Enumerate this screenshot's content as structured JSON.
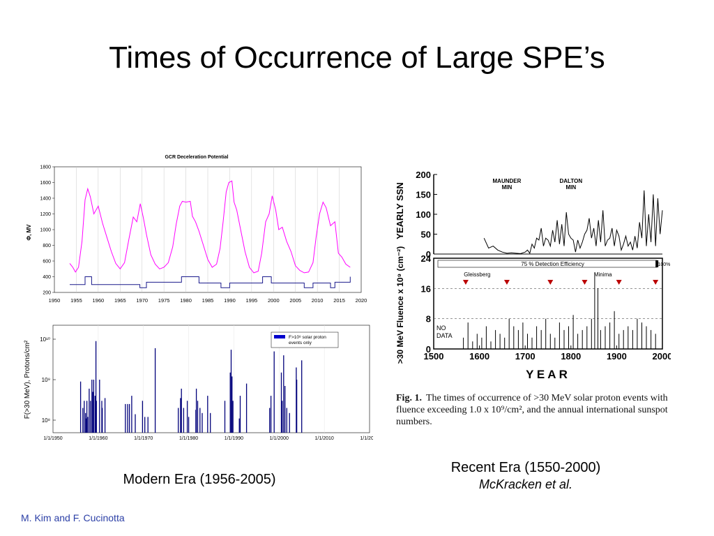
{
  "slide": {
    "title": "Times of Occurrence of Large SPE’s",
    "footer": "M. Kim and F. Cucinotta",
    "caption_modern": "Modern Era (1956-2005)",
    "caption_recent": "Recent Era (1550-2000)",
    "caption_recent_author": "McKracken et al."
  },
  "figure_caption": {
    "label": "Fig. 1.",
    "text": "The times of occurrence of  >30 MeV solar proton events with fluence exceeding 1.0 x 10⁹/cm², and the annual international sunspot numbers."
  },
  "colors": {
    "gcr_line": "#ff00ff",
    "spe_bars": "#00007a",
    "footer": "#2b3fa6"
  },
  "chart_data": [
    {
      "type": "line",
      "title": "GCR Deceleration Potential",
      "ylabel": "Φ, MV",
      "xlabel": "",
      "xlim": [
        1950,
        2020
      ],
      "ylim": [
        200,
        1800
      ],
      "xticks": [
        1950,
        1955,
        1960,
        1965,
        1970,
        1975,
        1980,
        1985,
        1990,
        1995,
        2000,
        2005,
        2010,
        2015,
        2020
      ],
      "yticks": [
        200,
        400,
        600,
        800,
        1000,
        1200,
        1400,
        1600,
        1800
      ],
      "grid": true,
      "series": [
        {
          "x": [
            1953.5,
            1954.2,
            1954.8,
            1955.5,
            1956.3,
            1957.0,
            1957.6,
            1958.2,
            1959.0,
            1960.0,
            1961.0,
            1962.0,
            1963.0,
            1964.0,
            1965.0,
            1966.0,
            1967.0,
            1968.0,
            1968.8,
            1969.6,
            1970.3,
            1971.0,
            1972.0,
            1973.0,
            1974.0,
            1975.0,
            1976.0,
            1977.0,
            1977.8,
            1978.6,
            1979.2,
            1980.0,
            1981.0,
            1981.5,
            1982.2,
            1983.0,
            1984.0,
            1985.0,
            1986.0,
            1987.0,
            1987.8,
            1988.5,
            1989.2,
            1989.8,
            1990.5,
            1991.0,
            1991.6,
            1992.5,
            1993.5,
            1994.5,
            1995.5,
            1996.5,
            1997.3,
            1998.2,
            1999.0,
            1999.7,
            2000.5,
            2001.2,
            2002.0,
            2003.0,
            2004.0,
            2005.0,
            2006.0,
            2007.0,
            2008.0,
            2009.0,
            2009.7,
            2010.5,
            2011.3,
            2012.0,
            2013.0,
            2014.0,
            2014.8,
            2015.6,
            2016.5,
            2017.5
          ],
          "y": [
            570,
            520,
            460,
            520,
            850,
            1380,
            1520,
            1420,
            1200,
            1300,
            1080,
            900,
            720,
            570,
            500,
            580,
            880,
            1160,
            1100,
            1330,
            1150,
            940,
            680,
            560,
            500,
            520,
            580,
            780,
            1070,
            1300,
            1360,
            1350,
            1360,
            1170,
            1100,
            980,
            800,
            620,
            520,
            560,
            760,
            1100,
            1480,
            1600,
            1620,
            1350,
            1250,
            1000,
            720,
            520,
            450,
            470,
            700,
            1100,
            1200,
            1430,
            1250,
            1000,
            1030,
            850,
            720,
            540,
            480,
            450,
            460,
            580,
            900,
            1200,
            1350,
            1280,
            1050,
            1100,
            700,
            650,
            560,
            520
          ]
        }
      ],
      "step_series": {
        "name": "",
        "x": [
          1953.5,
          1957.0,
          1958.5,
          1969.5,
          1971.0,
          1979.0,
          1983.0,
          1988.0,
          1990.0,
          1997.5,
          1999.5,
          2007.0,
          2009.0,
          2013.0,
          2014.0,
          2017.5
        ],
        "y": [
          300,
          400,
          300,
          260,
          330,
          400,
          320,
          260,
          320,
          400,
          320,
          260,
          320,
          260,
          330,
          400
        ]
      }
    },
    {
      "type": "bar",
      "title": "",
      "ylabel": "F(>30 MeV), Protons/cm²",
      "yscale": "log",
      "xlim": [
        1950,
        2020
      ],
      "xticks": [
        "1/1/1950",
        "1/1/1960",
        "1/1/1970",
        "1/1/1980",
        "1/1/1990",
        "1/1/2000",
        "1/1/2010",
        "1/1/2020"
      ],
      "yticks": [
        "10⁸",
        "10⁹",
        "10¹⁰"
      ],
      "legend": {
        "position": "top-right",
        "entries": [
          "F>10⁸ solar proton events only"
        ]
      },
      "series": [
        {
          "x": [
            1956.1,
            1956.6,
            1956.9,
            1957.2,
            1957.3,
            1957.5,
            1957.7,
            1958.0,
            1958.3,
            1958.6,
            1958.8,
            1959.0,
            1959.3,
            1959.5,
            1959.6,
            1960.3,
            1960.8,
            1960.9,
            1961.5,
            1966.0,
            1966.5,
            1966.9,
            1967.4,
            1968.2,
            1969.8,
            1970.3,
            1971.0,
            1972.6,
            1977.7,
            1978.2,
            1978.4,
            1978.9,
            1979.7,
            1980.0,
            1981.6,
            1981.7,
            1982.0,
            1982.5,
            1983.0,
            1984.2,
            1984.8,
            1988.0,
            1989.2,
            1989.4,
            1989.6,
            1989.8,
            1991.2,
            1991.4,
            1992.8,
            1997.9,
            1998.2,
            1998.9,
            2000.5,
            2000.7,
            2001.0,
            2001.3,
            2001.7,
            2002.3,
            2003.8,
            2003.9,
            2005.0
          ],
          "y": [
            900000000.0,
            200000000.0,
            300000000.0,
            150000000.0,
            110000000.0,
            300000000.0,
            120000000.0,
            600000000.0,
            300000000.0,
            1000000000.0,
            500000000.0,
            1000000000.0,
            400000000.0,
            9000000000.0,
            300000000.0,
            1000000000.0,
            300000000.0,
            200000000.0,
            350000000.0,
            250000000.0,
            250000000.0,
            250000000.0,
            400000000.0,
            140000000.0,
            300000000.0,
            120000000.0,
            120000000.0,
            6000000000.0,
            200000000.0,
            350000000.0,
            600000000.0,
            200000000.0,
            300000000.0,
            120000000.0,
            180000000.0,
            600000000.0,
            300000000.0,
            200000000.0,
            150000000.0,
            400000000.0,
            150000000.0,
            300000000.0,
            1500000000.0,
            5500000000.0,
            1200000000.0,
            300000000.0,
            110000000.0,
            400000000.0,
            800000000.0,
            200000000.0,
            400000000.0,
            5000000000.0,
            1500000000.0,
            300000000.0,
            4000000000.0,
            700000000.0,
            200000000.0,
            150000000.0,
            2000000000.0,
            1000000000.0,
            3000000000.0
          ]
        }
      ]
    },
    {
      "type": "bar",
      "title": "",
      "xlim": [
        1500,
        2000
      ],
      "xticks": [
        1500,
        1600,
        1700,
        1800,
        1900,
        2000
      ],
      "xlabel": "Y E A R",
      "panels": [
        {
          "name": "ssn",
          "ylabel": "YEARLY  SSN",
          "ylim": [
            0,
            200
          ],
          "yticks": [
            0,
            50,
            100,
            150,
            200
          ],
          "annotations": [
            "MAUNDER\nMIN",
            "DALTON\nMIN"
          ],
          "series": [
            {
              "x": [
                1610,
                1620,
                1630,
                1640,
                1650,
                1660,
                1670,
                1680,
                1690,
                1700,
                1705,
                1710,
                1715,
                1720,
                1725,
                1730,
                1735,
                1740,
                1745,
                1750,
                1755,
                1760,
                1765,
                1770,
                1775,
                1780,
                1785,
                1790,
                1795,
                1800,
                1805,
                1810,
                1815,
                1820,
                1825,
                1830,
                1835,
                1840,
                1845,
                1850,
                1855,
                1860,
                1865,
                1870,
                1875,
                1880,
                1885,
                1890,
                1895,
                1900,
                1905,
                1910,
                1915,
                1920,
                1925,
                1930,
                1935,
                1940,
                1945,
                1950,
                1955,
                1960,
                1965,
                1970,
                1975,
                1980,
                1985,
                1990,
                1995,
                2000
              ],
              "y": [
                40,
                15,
                20,
                10,
                5,
                2,
                3,
                2,
                1,
                5,
                10,
                2,
                25,
                15,
                40,
                35,
                65,
                20,
                40,
                35,
                20,
                60,
                30,
                85,
                25,
                75,
                20,
                105,
                50,
                40,
                35,
                5,
                35,
                15,
                30,
                50,
                60,
                90,
                40,
                65,
                20,
                85,
                30,
                110,
                20,
                35,
                40,
                65,
                20,
                60,
                45,
                10,
                25,
                45,
                20,
                30,
                10,
                45,
                15,
                80,
                40,
                160,
                20,
                100,
                30,
                150,
                20,
                140,
                50,
                110
              ]
            }
          ]
        },
        {
          "name": "fluence",
          "ylabel": ">30 MeV Fluence x 10⁹ (cm⁻²)",
          "ylim": [
            0,
            24
          ],
          "yticks": [
            0,
            8,
            16,
            24
          ],
          "annotations": [
            "75 %  Detection  Efficiency",
            "100%",
            "Gleissberg",
            "Minima",
            "NO\nDATA"
          ],
          "minima_x": [
            1570,
            1660,
            1755,
            1830,
            1905,
            1985
          ],
          "series": [
            {
              "x": [
                1565,
                1575,
                1585,
                1595,
                1605,
                1615,
                1625,
                1635,
                1645,
                1655,
                1665,
                1675,
                1685,
                1695,
                1705,
                1715,
                1725,
                1735,
                1745,
                1755,
                1765,
                1775,
                1785,
                1795,
                1805,
                1815,
                1825,
                1835,
                1845,
                1852,
                1859,
                1865,
                1875,
                1885,
                1895,
                1905,
                1915,
                1925,
                1935,
                1945,
                1955,
                1965,
                1975,
                1985
              ],
              "y": [
                3,
                7,
                2,
                4,
                3,
                6,
                2,
                5,
                4,
                3,
                8,
                6,
                5,
                7,
                4,
                3,
                6,
                5,
                8,
                4,
                3,
                7,
                5,
                6,
                9,
                4,
                5,
                6,
                8,
                20,
                16,
                5,
                6,
                7,
                10,
                4,
                5,
                6,
                5,
                8,
                7,
                6,
                5,
                4
              ]
            }
          ]
        }
      ],
      "caption_label": "Fig. 1."
    }
  ]
}
